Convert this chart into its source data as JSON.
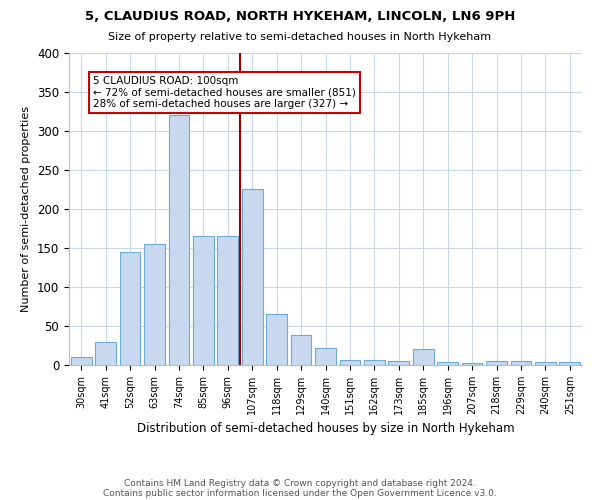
{
  "title": "5, CLAUDIUS ROAD, NORTH HYKEHAM, LINCOLN, LN6 9PH",
  "subtitle": "Size of property relative to semi-detached houses in North Hykeham",
  "xlabel": "Distribution of semi-detached houses by size in North Hykeham",
  "ylabel": "Number of semi-detached properties",
  "footnote1": "Contains HM Land Registry data © Crown copyright and database right 2024.",
  "footnote2": "Contains public sector information licensed under the Open Government Licence v3.0.",
  "categories": [
    "30sqm",
    "41sqm",
    "52sqm",
    "63sqm",
    "74sqm",
    "85sqm",
    "96sqm",
    "107sqm",
    "118sqm",
    "129sqm",
    "140sqm",
    "151sqm",
    "162sqm",
    "173sqm",
    "185sqm",
    "196sqm",
    "207sqm",
    "218sqm",
    "229sqm",
    "240sqm",
    "251sqm"
  ],
  "values": [
    10,
    30,
    145,
    155,
    320,
    165,
    165,
    225,
    65,
    38,
    22,
    6,
    6,
    5,
    20,
    4,
    2,
    5,
    5,
    4,
    4
  ],
  "bar_color": "#c8d9ef",
  "bar_edge_color": "#6aaad4",
  "property_size_label": "5 CLAUDIUS ROAD: 100sqm",
  "pct_smaller": 72,
  "pct_larger": 28,
  "n_smaller": 851,
  "n_larger": 327,
  "red_line_color": "#990000",
  "annotation_box_color": "#ffffff",
  "annotation_border_color": "#cc0000",
  "ylim": [
    0,
    400
  ],
  "yticks": [
    0,
    50,
    100,
    150,
    200,
    250,
    300,
    350,
    400
  ],
  "background_color": "#ffffff",
  "grid_color": "#c8d8e8"
}
